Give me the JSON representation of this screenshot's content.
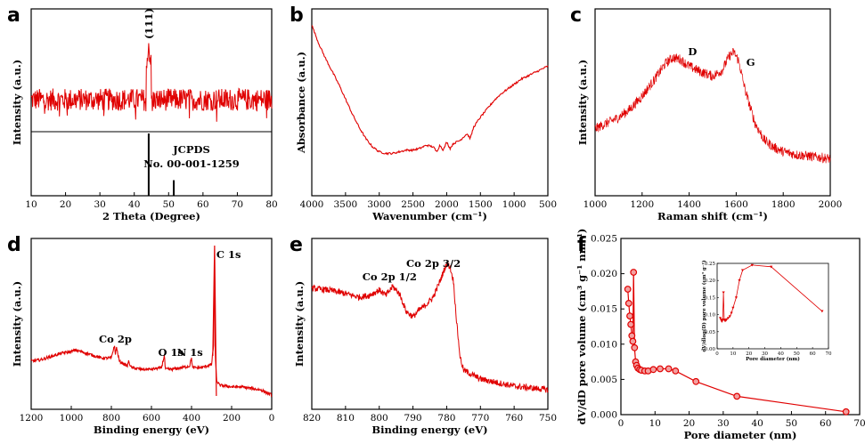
{
  "colors": {
    "line": "#e00000",
    "axis": "#000000"
  },
  "chart_data": [
    {
      "id": "a",
      "panel_label": "a",
      "type": "line",
      "xlabel": "2 Theta (Degree)",
      "ylabel": "Intensity (a.u.)",
      "xlim": [
        10,
        80
      ],
      "xticks": [
        10,
        20,
        30,
        40,
        50,
        60,
        70,
        80
      ],
      "peak_label": "(111)",
      "series": [
        {
          "x": [
            10,
            20,
            30,
            36,
            42,
            44.2,
            46,
            50,
            60,
            70,
            80
          ],
          "y": [
            1,
            1,
            1,
            1.05,
            1.1,
            3.2,
            1.1,
            1,
            1,
            1,
            1
          ]
        }
      ],
      "reference": {
        "label": "JCPDS",
        "card": "No. 00-001-1259",
        "lines": [
          {
            "x": 44.2,
            "h": 1.0
          },
          {
            "x": 51.5,
            "h": 0.25
          }
        ]
      }
    },
    {
      "id": "b",
      "panel_label": "b",
      "type": "line",
      "xlabel": "Wavenumber (cm⁻¹)",
      "ylabel": "Absorbance (a.u.)",
      "xlim": [
        4000,
        500
      ],
      "xticks": [
        4000,
        3500,
        3000,
        2500,
        2000,
        1500,
        1000,
        500
      ],
      "series": [
        {
          "x": [
            4000,
            3900,
            3800,
            3700,
            3600,
            3500,
            3400,
            3300,
            3200,
            3100,
            3000,
            2900,
            2800,
            2700,
            2600,
            2500,
            2400,
            2300,
            2200,
            2150,
            2100,
            2050,
            2000,
            1950,
            1900,
            1800,
            1700,
            1650,
            1600,
            1500,
            1400,
            1300,
            1200,
            1100,
            1000,
            900,
            800,
            700,
            600,
            500
          ],
          "y": [
            9.4,
            8.3,
            7.4,
            6.6,
            5.8,
            4.9,
            4.0,
            3.2,
            2.5,
            2.0,
            1.7,
            1.6,
            1.6,
            1.7,
            1.8,
            1.8,
            1.9,
            2.1,
            2.0,
            1.7,
            2.1,
            1.8,
            2.3,
            1.9,
            2.2,
            2.4,
            2.8,
            2.5,
            3.2,
            3.8,
            4.3,
            4.8,
            5.2,
            5.5,
            5.8,
            6.1,
            6.3,
            6.5,
            6.7,
            6.9
          ]
        }
      ]
    },
    {
      "id": "c",
      "panel_label": "c",
      "type": "line",
      "xlabel": "Raman shift (cm⁻¹)",
      "ylabel": "Intensity (a.u.)",
      "xlim": [
        1000,
        2000
      ],
      "xticks": [
        1000,
        1200,
        1400,
        1600,
        1800,
        2000
      ],
      "annotations": [
        {
          "text": "D",
          "x": 1350
        },
        {
          "text": "G",
          "x": 1590
        }
      ],
      "series": [
        {
          "x": [
            1000,
            1050,
            1100,
            1150,
            1200,
            1250,
            1300,
            1330,
            1360,
            1400,
            1450,
            1500,
            1540,
            1570,
            1590,
            1610,
            1640,
            1680,
            1720,
            1760,
            1800,
            1850,
            1900,
            1950,
            2000
          ],
          "y": [
            4.2,
            4.6,
            5.0,
            5.6,
            6.5,
            7.6,
            8.8,
            9.2,
            9.1,
            8.6,
            8.2,
            7.9,
            8.3,
            9.3,
            9.6,
            9.0,
            6.8,
            4.6,
            3.4,
            2.9,
            2.6,
            2.4,
            2.3,
            2.2,
            2.1
          ]
        }
      ]
    },
    {
      "id": "d",
      "panel_label": "d",
      "type": "line",
      "xlabel": "Binding energy (eV)",
      "ylabel": "Intensity (a.u.)",
      "xlim": [
        1200,
        0
      ],
      "xticks": [
        1200,
        1000,
        800,
        600,
        400,
        200,
        0
      ],
      "annotations": [
        {
          "text": "C 1s",
          "x": 285
        },
        {
          "text": "Co 2p",
          "x": 780
        },
        {
          "text": "O 1s",
          "x": 532
        },
        {
          "text": "N 1s",
          "x": 400
        }
      ],
      "series": [
        {
          "x": [
            1200,
            1150,
            1100,
            1050,
            1000,
            980,
            950,
            900,
            850,
            800,
            785,
            780,
            775,
            760,
            720,
            715,
            700,
            650,
            600,
            550,
            535,
            532,
            528,
            500,
            450,
            410,
            400,
            395,
            350,
            300,
            290,
            285,
            282,
            275,
            260,
            200,
            150,
            100,
            50,
            20,
            0
          ],
          "y": [
            3.0,
            3.1,
            3.3,
            3.5,
            3.6,
            3.7,
            3.6,
            3.4,
            3.2,
            3.2,
            4.0,
            3.4,
            3.9,
            3.0,
            2.7,
            3.0,
            2.6,
            2.5,
            2.5,
            2.6,
            3.4,
            2.6,
            2.5,
            2.5,
            2.6,
            2.7,
            3.2,
            2.6,
            2.6,
            2.8,
            4.0,
            9.8,
            3.6,
            1.8,
            1.5,
            1.4,
            1.4,
            1.3,
            1.2,
            1.0,
            0.9
          ]
        }
      ]
    },
    {
      "id": "e",
      "panel_label": "e",
      "type": "line",
      "xlabel": "Binding energy (eV)",
      "ylabel": "Intensity (a.u.)",
      "xlim": [
        820,
        750
      ],
      "xticks": [
        820,
        810,
        800,
        790,
        780,
        770,
        760,
        750
      ],
      "annotations": [
        {
          "text": "Co 2p 1/2",
          "x": 797
        },
        {
          "text": "Co 2p 3/2",
          "x": 780
        }
      ],
      "series": [
        {
          "x": [
            820,
            815,
            810,
            806,
            803,
            800,
            798,
            796,
            794,
            792,
            790,
            788,
            786,
            784,
            782,
            780,
            779,
            778,
            777,
            776,
            775,
            772,
            770,
            765,
            760,
            755,
            750
          ],
          "y": [
            6.5,
            6.4,
            6.2,
            6.0,
            6.1,
            6.4,
            6.1,
            6.6,
            6.2,
            5.2,
            4.9,
            5.3,
            5.6,
            6.0,
            6.9,
            7.9,
            7.7,
            6.9,
            4.5,
            2.6,
            1.9,
            1.6,
            1.4,
            1.2,
            1.0,
            0.9,
            0.8
          ]
        }
      ]
    },
    {
      "id": "f",
      "panel_label": "f",
      "type": "line",
      "xlabel": "Pore diameter (nm)",
      "ylabel": "dV/dD pore volume (cm³ g⁻¹ nm⁻¹)",
      "xlim": [
        0,
        70
      ],
      "ylim": [
        0,
        0.025
      ],
      "xticks": [
        0,
        10,
        20,
        30,
        40,
        50,
        60,
        70
      ],
      "yticks": [
        0.0,
        0.005,
        0.01,
        0.015,
        0.02,
        0.025
      ],
      "ytick_labels": [
        "0.000",
        "0.005",
        "0.010",
        "0.015",
        "0.020",
        "0.025"
      ],
      "series": [
        {
          "x": [
            2.0,
            2.3,
            2.6,
            2.9,
            3.2,
            3.5,
            3.7,
            4.0,
            4.3,
            4.6,
            5.0,
            5.5,
            6.0,
            7.0,
            8.0,
            9.5,
            11.5,
            14.0,
            16.0,
            22.0,
            34.0,
            66.0
          ],
          "y": [
            0.0178,
            0.0158,
            0.014,
            0.0128,
            0.0112,
            0.0104,
            0.0202,
            0.0095,
            0.0075,
            0.007,
            0.0066,
            0.0064,
            0.0063,
            0.0062,
            0.0062,
            0.0064,
            0.0065,
            0.0065,
            0.0062,
            0.0047,
            0.0026,
            0.0004
          ]
        }
      ],
      "inset": {
        "xlabel": "Pore diameter (nm)",
        "ylabel": "dV/dlog(D) pore volume (cm³ g⁻¹)",
        "xlim": [
          0,
          70
        ],
        "ylim": [
          0,
          0.25
        ],
        "xticks": [
          0,
          10,
          20,
          30,
          40,
          50,
          60,
          70
        ],
        "yticks": [
          0.0,
          0.05,
          0.1,
          0.15,
          0.2,
          0.25
        ],
        "ytick_labels": [
          "0.00",
          "0.05",
          "0.10",
          "0.15",
          "0.20",
          "0.25"
        ],
        "series": [
          {
            "x": [
              2,
              2.5,
              3,
              3.5,
              4,
              4.5,
              5,
              5.5,
              6,
              7,
              8,
              9,
              10,
              12,
              14,
              16,
              22,
              34,
              66
            ],
            "y": [
              0.09,
              0.085,
              0.08,
              0.085,
              0.165,
              0.085,
              0.082,
              0.083,
              0.086,
              0.09,
              0.095,
              0.105,
              0.12,
              0.15,
              0.2,
              0.23,
              0.245,
              0.24,
              0.11
            ]
          }
        ]
      }
    }
  ]
}
